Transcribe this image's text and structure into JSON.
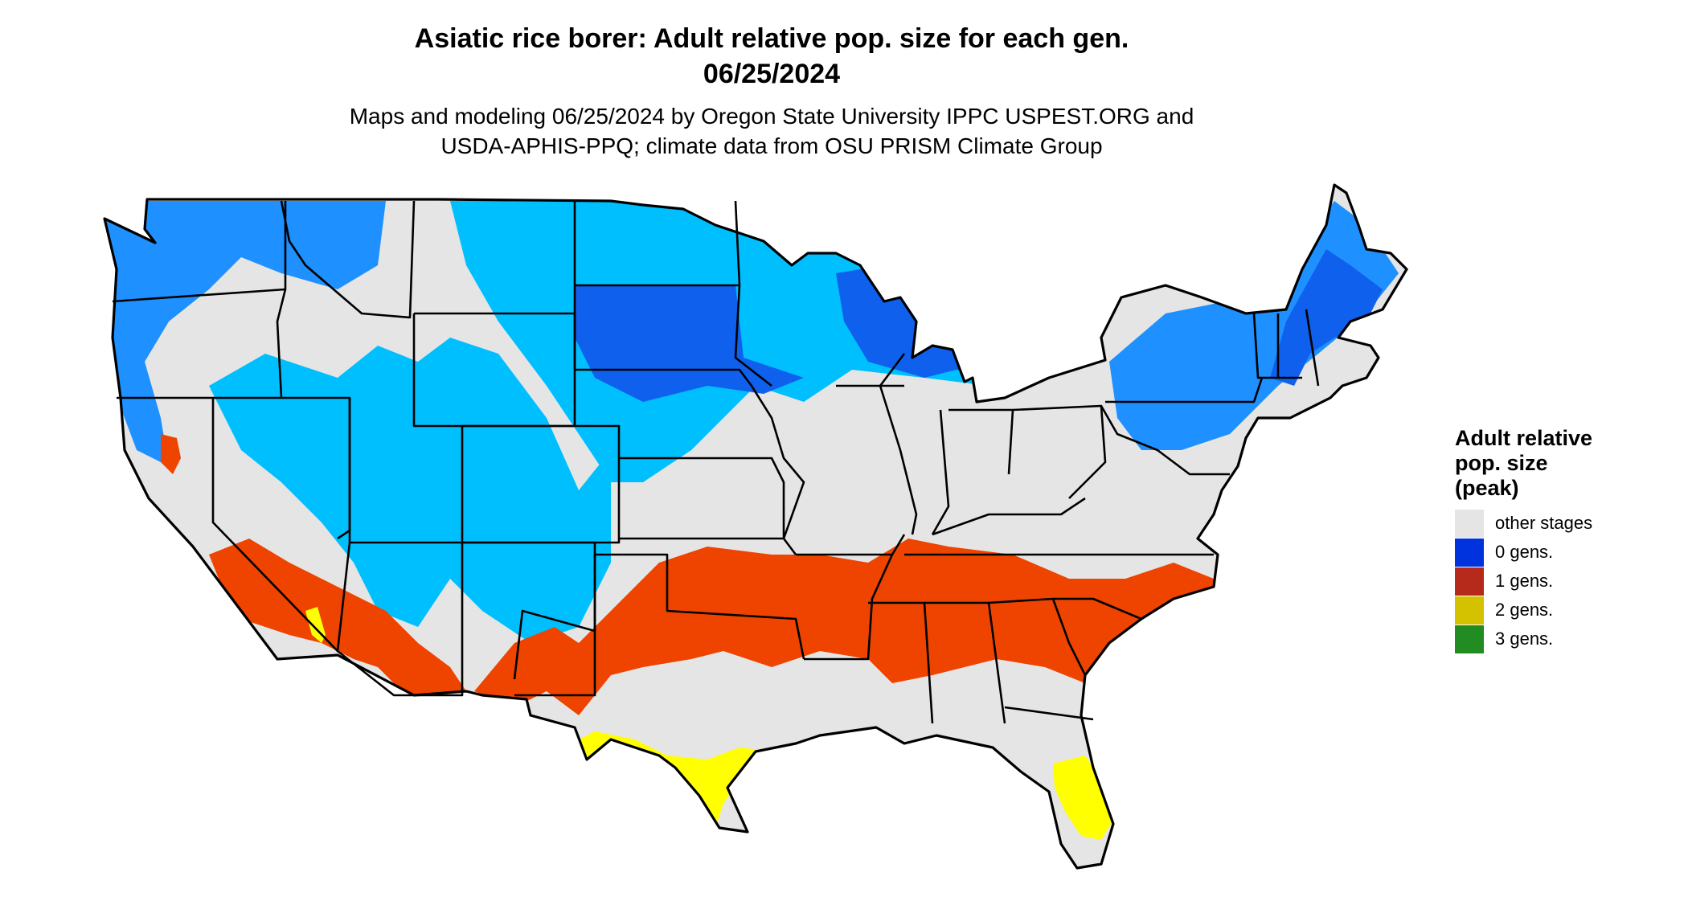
{
  "title": {
    "line1": "Asiatic rice borer: Adult relative pop. size for each gen.",
    "line2": "06/25/2024"
  },
  "subtitle": {
    "line1": "Maps and modeling 06/25/2024 by Oregon State University IPPC USPEST.ORG and",
    "line2": "USDA-APHIS-PPQ; climate data from OSU PRISM Climate Group"
  },
  "legend": {
    "title_line1": "Adult relative",
    "title_line2": "pop. size",
    "title_line3": "(peak)",
    "items": [
      {
        "label": "other stages",
        "color": "#e5e5e5"
      },
      {
        "label": "0 gens.",
        "color": "#0033dd"
      },
      {
        "label": "1 gens.",
        "color": "#b52a1a"
      },
      {
        "label": "2 gens.",
        "color": "#d4c200"
      },
      {
        "label": "3 gens.",
        "color": "#228b22"
      }
    ]
  },
  "map_colors": {
    "land_other": "#e5e5e5",
    "blue_light": "#00bfff",
    "blue_mid": "#1e90ff",
    "blue_dark": "#1060ee",
    "red": "#ee4400",
    "yellow": "#ffff00",
    "green": "#66dd66",
    "border": "#000000"
  }
}
